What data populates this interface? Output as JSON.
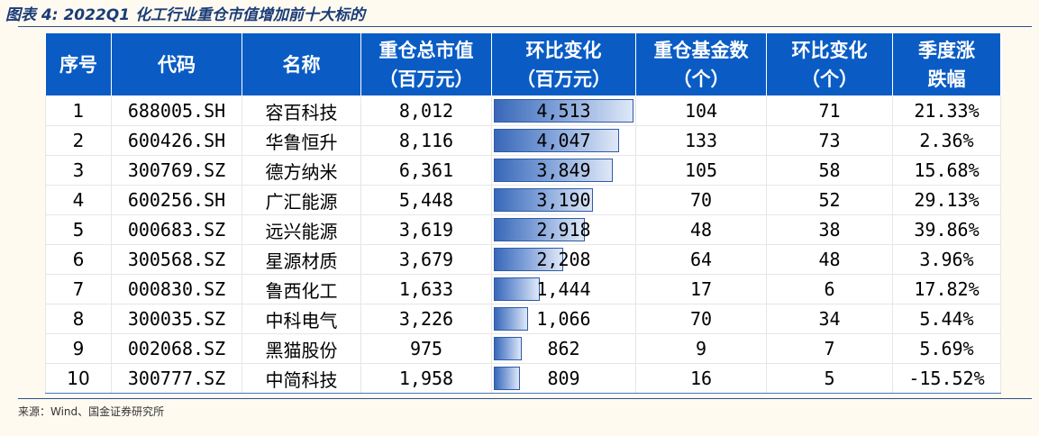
{
  "title": "图表 4: 2022Q1 化工行业重仓市值增加前十大标的",
  "source": "来源：Wind、国金证券研究所",
  "headers": {
    "seq": "序号",
    "code": "代码",
    "name": "名称",
    "mv_l1": "重仓总市值",
    "mv_l2": "（百万元）",
    "mvchg_l1": "环比变化",
    "mvchg_l2": "（百万元）",
    "funds_l1": "重仓基金数",
    "funds_l2": "（个）",
    "fundchg_l1": "环比变化",
    "fundchg_l2": "（个）",
    "ret_l1": "季度涨",
    "ret_l2": "跌幅"
  },
  "colors": {
    "header_bg": "#0a5cc4",
    "title": "#1a3c78",
    "bar": "#3868b8"
  },
  "bar_max": 4513,
  "rows": [
    {
      "seq": "1",
      "code": "688005.SH",
      "name": "容百科技",
      "mv": "8,012",
      "mvchg": "4,513",
      "mvchg_val": 4513,
      "funds": "104",
      "fundchg": "71",
      "ret": "21.33%"
    },
    {
      "seq": "2",
      "code": "600426.SH",
      "name": "华鲁恒升",
      "mv": "8,116",
      "mvchg": "4,047",
      "mvchg_val": 4047,
      "funds": "133",
      "fundchg": "73",
      "ret": "2.36%"
    },
    {
      "seq": "3",
      "code": "300769.SZ",
      "name": "德方纳米",
      "mv": "6,361",
      "mvchg": "3,849",
      "mvchg_val": 3849,
      "funds": "105",
      "fundchg": "58",
      "ret": "15.68%"
    },
    {
      "seq": "4",
      "code": "600256.SH",
      "name": "广汇能源",
      "mv": "5,448",
      "mvchg": "3,190",
      "mvchg_val": 3190,
      "funds": "70",
      "fundchg": "52",
      "ret": "29.13%"
    },
    {
      "seq": "5",
      "code": "000683.SZ",
      "name": "远兴能源",
      "mv": "3,619",
      "mvchg": "2,918",
      "mvchg_val": 2918,
      "funds": "48",
      "fundchg": "38",
      "ret": "39.86%"
    },
    {
      "seq": "6",
      "code": "300568.SZ",
      "name": "星源材质",
      "mv": "3,679",
      "mvchg": "2,208",
      "mvchg_val": 2208,
      "funds": "64",
      "fundchg": "48",
      "ret": "3.96%"
    },
    {
      "seq": "7",
      "code": "000830.SZ",
      "name": "鲁西化工",
      "mv": "1,633",
      "mvchg": "1,444",
      "mvchg_val": 1444,
      "funds": "17",
      "fundchg": "6",
      "ret": "17.82%"
    },
    {
      "seq": "8",
      "code": "300035.SZ",
      "name": "中科电气",
      "mv": "3,226",
      "mvchg": "1,066",
      "mvchg_val": 1066,
      "funds": "70",
      "fundchg": "34",
      "ret": "5.44%"
    },
    {
      "seq": "9",
      "code": "002068.SZ",
      "name": "黑猫股份",
      "mv": "975",
      "mvchg": "862",
      "mvchg_val": 862,
      "funds": "9",
      "fundchg": "7",
      "ret": "5.69%"
    },
    {
      "seq": "10",
      "code": "300777.SZ",
      "name": "中简科技",
      "mv": "1,958",
      "mvchg": "809",
      "mvchg_val": 809,
      "funds": "16",
      "fundchg": "5",
      "ret": "-15.52%"
    }
  ]
}
